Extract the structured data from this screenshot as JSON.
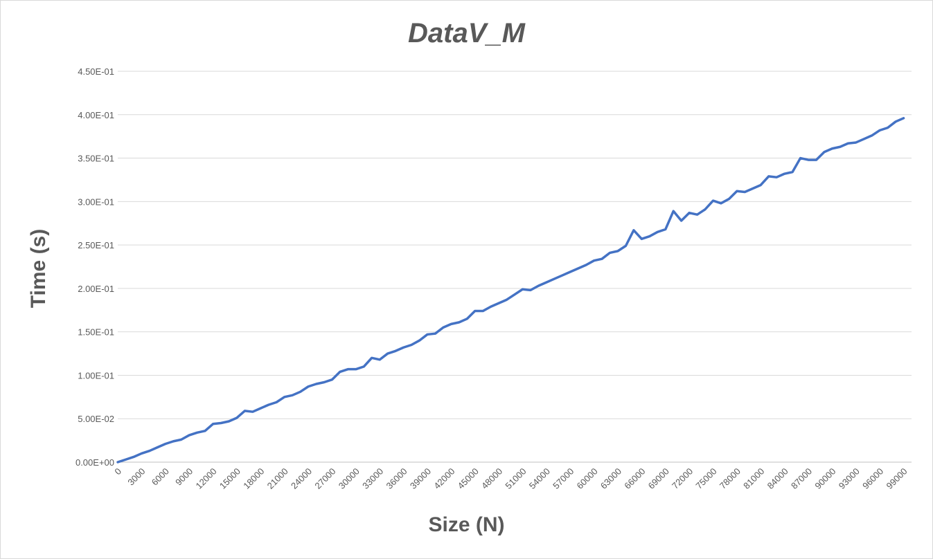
{
  "chart_data": {
    "type": "line",
    "title": "DataV_M",
    "xlabel": "Size (N)",
    "ylabel": "Time (s)",
    "ylim": [
      0,
      0.45
    ],
    "yticks": [
      "0.00E+00",
      "5.00E-02",
      "1.00E-01",
      "1.50E-01",
      "2.00E-01",
      "2.50E-01",
      "3.00E-01",
      "3.50E-01",
      "4.00E-01",
      "4.50E-01"
    ],
    "xticks": [
      "0",
      "3000",
      "6000",
      "9000",
      "12000",
      "15000",
      "18000",
      "21000",
      "24000",
      "27000",
      "30000",
      "33000",
      "36000",
      "39000",
      "42000",
      "45000",
      "48000",
      "51000",
      "54000",
      "57000",
      "60000",
      "63000",
      "66000",
      "69000",
      "72000",
      "75000",
      "78000",
      "81000",
      "84000",
      "87000",
      "90000",
      "93000",
      "96000",
      "99000"
    ],
    "grid": true,
    "line_color": "#4472c4",
    "series": [
      {
        "x": [
          0,
          1000,
          2000,
          3000,
          4000,
          5000,
          6000,
          7000,
          8000,
          9000,
          10000,
          11000,
          12000,
          13000,
          14000,
          15000,
          16000,
          17000,
          18000,
          19000,
          20000,
          21000,
          22000,
          23000,
          24000,
          25000,
          26000,
          27000,
          28000,
          29000,
          30000,
          31000,
          32000,
          33000,
          34000,
          35000,
          36000,
          37000,
          38000,
          39000,
          40000,
          41000,
          42000,
          43000,
          44000,
          45000,
          46000,
          47000,
          48000,
          49000,
          50000,
          51000,
          52000,
          53000,
          54000,
          55000,
          56000,
          57000,
          58000,
          59000,
          60000,
          61000,
          62000,
          63000,
          64000,
          65000,
          66000,
          67000,
          68000,
          69000,
          70000,
          71000,
          72000,
          73000,
          74000,
          75000,
          76000,
          77000,
          78000,
          79000,
          80000,
          81000,
          82000,
          83000,
          84000,
          85000,
          86000,
          87000,
          88000,
          89000,
          90000,
          91000,
          92000,
          93000,
          94000,
          95000,
          96000,
          97000,
          98000,
          99000
        ],
        "values": [
          0,
          0.003,
          0.006,
          0.01,
          0.013,
          0.017,
          0.021,
          0.024,
          0.026,
          0.031,
          0.034,
          0.036,
          0.044,
          0.045,
          0.047,
          0.051,
          0.059,
          0.058,
          0.062,
          0.066,
          0.069,
          0.075,
          0.077,
          0.081,
          0.087,
          0.09,
          0.092,
          0.095,
          0.104,
          0.107,
          0.107,
          0.11,
          0.12,
          0.118,
          0.125,
          0.128,
          0.132,
          0.135,
          0.14,
          0.147,
          0.148,
          0.155,
          0.159,
          0.161,
          0.165,
          0.174,
          0.174,
          0.179,
          0.183,
          0.187,
          0.193,
          0.199,
          0.198,
          0.203,
          0.207,
          0.211,
          0.215,
          0.219,
          0.223,
          0.227,
          0.232,
          0.234,
          0.241,
          0.243,
          0.249,
          0.267,
          0.257,
          0.26,
          0.265,
          0.268,
          0.289,
          0.278,
          0.287,
          0.285,
          0.291,
          0.301,
          0.298,
          0.303,
          0.312,
          0.311,
          0.315,
          0.319,
          0.329,
          0.328,
          0.332,
          0.334,
          0.35,
          0.348,
          0.348,
          0.357,
          0.361,
          0.363,
          0.367,
          0.368,
          0.372,
          0.376,
          0.382,
          0.385,
          0.392,
          0.396
        ]
      }
    ]
  }
}
